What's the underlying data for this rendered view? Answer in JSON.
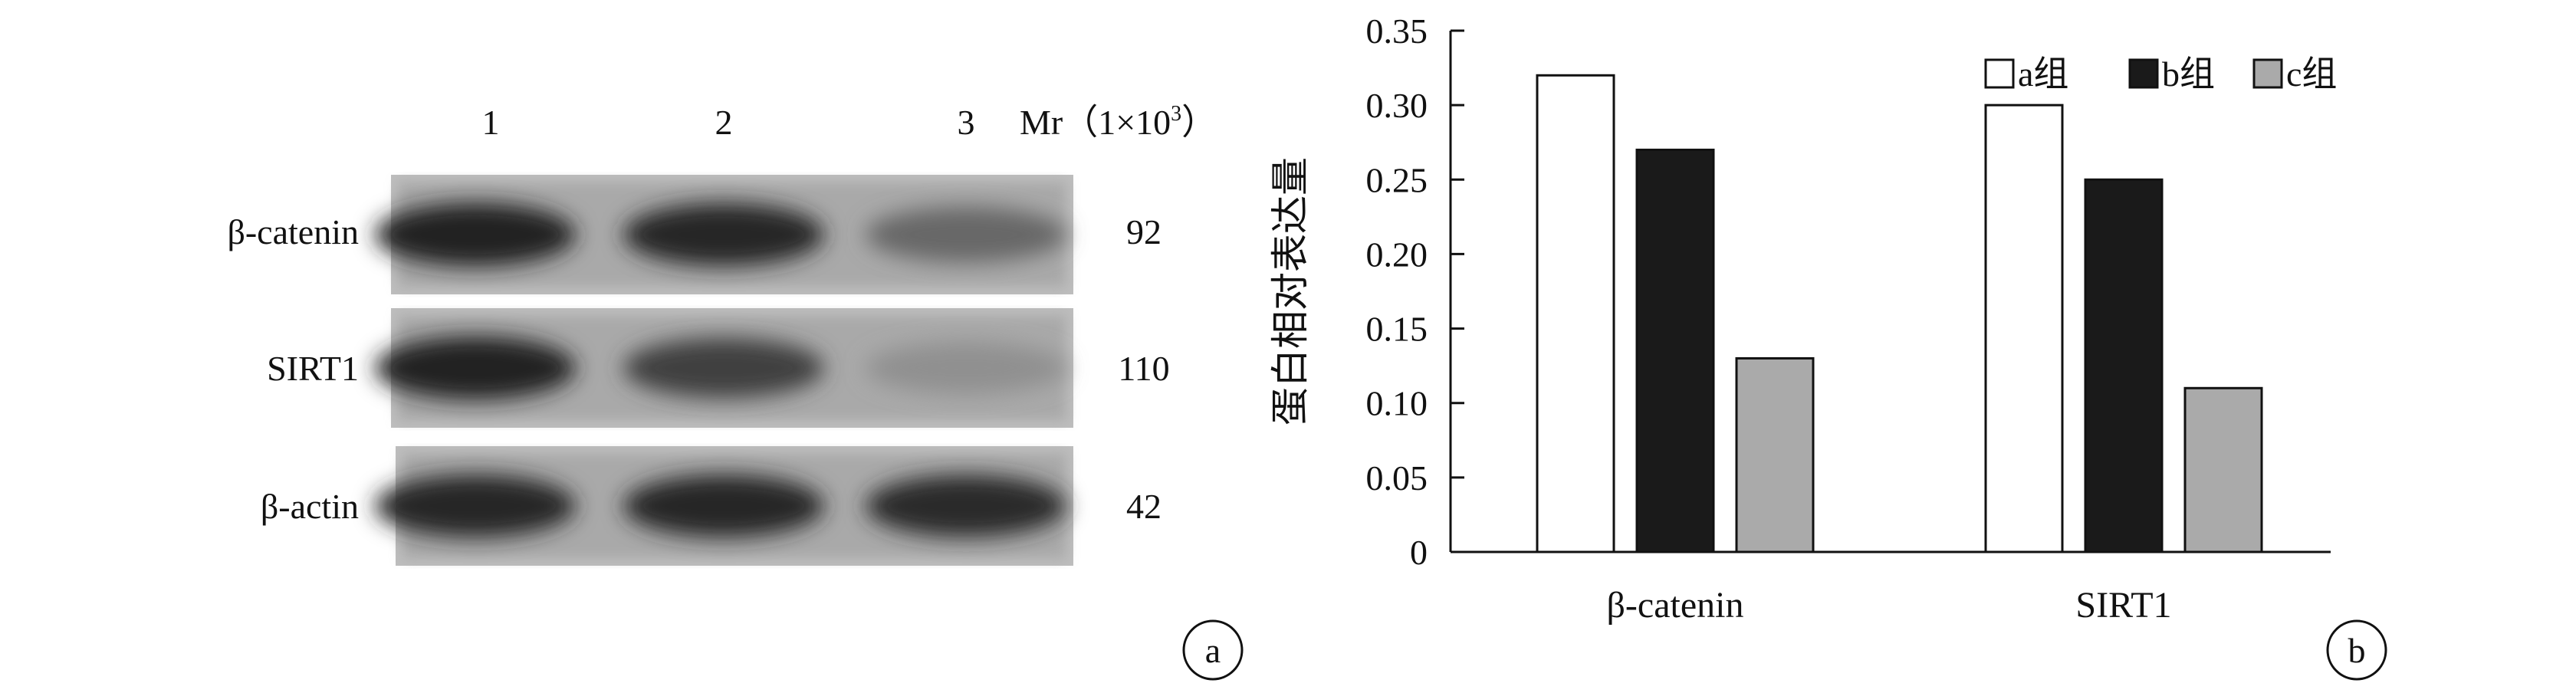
{
  "blot": {
    "lanes": [
      "1",
      "2",
      "3"
    ],
    "mr_label": "Mr（1×10",
    "mr_sup": "3",
    "mr_close": "）",
    "rows": [
      {
        "label": "β-catenin",
        "mr": "92",
        "intensity": [
          0.95,
          0.93,
          0.55
        ]
      },
      {
        "label": "SIRT1",
        "mr": "110",
        "intensity": [
          0.95,
          0.78,
          0.32
        ]
      },
      {
        "label": "β-actin",
        "mr": "42",
        "intensity": [
          0.92,
          0.92,
          0.9
        ]
      }
    ],
    "panel_label": "a"
  },
  "chart_data": {
    "type": "bar",
    "categories": [
      "β-catenin",
      "SIRT1"
    ],
    "series": [
      {
        "name": "a组",
        "values": [
          0.32,
          0.3
        ],
        "color": "#ffffff"
      },
      {
        "name": "b组",
        "values": [
          0.27,
          0.25
        ],
        "color": "#1a1a1a"
      },
      {
        "name": "c组",
        "values": [
          0.13,
          0.11
        ],
        "color": "#aaaaaa"
      }
    ],
    "ylabel": "蛋白相对表达量",
    "ylim": [
      0,
      0.35
    ],
    "yticks": [
      "0",
      "0.05",
      "0.10",
      "0.15",
      "0.20",
      "0.25",
      "0.30",
      "0.35"
    ],
    "yticks_values": [
      0,
      0.05,
      0.1,
      0.15,
      0.2,
      0.25,
      0.3,
      0.35
    ],
    "grid": false,
    "legend": "top-right",
    "panel_label": "b"
  }
}
